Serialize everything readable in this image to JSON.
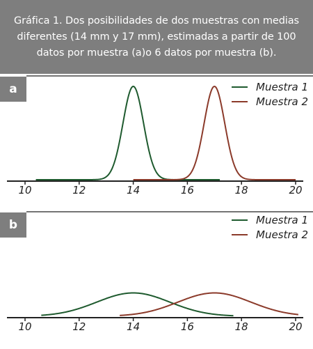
{
  "caption": "Gráfica 1. Dos posibilidades de dos muestras con medias diferentes (14 mm y 17 mm), estimadas a partir de 100 datos por muestra (a)o 6 datos por muestra (b).",
  "colors": {
    "caption_bg": "#7e7e7e",
    "series_1": "#1e5a2e",
    "series_2": "#8b3a2a",
    "axis": "#222222"
  },
  "chart_data": [
    {
      "type": "line",
      "panel_label": "a",
      "xlim": [
        10,
        20
      ],
      "x_ticks": [
        10,
        12,
        14,
        16,
        18,
        20
      ],
      "grid": false,
      "legend_position": "top-right",
      "series": [
        {
          "name": "Muestra 1",
          "mean": 14,
          "sd": 0.38,
          "x_range": [
            10.4,
            17.2
          ],
          "peak": 1.0
        },
        {
          "name": "Muestra 2",
          "mean": 17,
          "sd": 0.38,
          "x_range": [
            14,
            20
          ],
          "peak": 1.0
        }
      ]
    },
    {
      "type": "line",
      "panel_label": "b",
      "xlim": [
        10,
        20
      ],
      "x_ticks": [
        10,
        12,
        14,
        16,
        18,
        20
      ],
      "grid": false,
      "legend_position": "top-right",
      "series": [
        {
          "name": "Muestra 1",
          "mean": 14,
          "sd": 1.35,
          "x_range": [
            10.6,
            17.7
          ],
          "peak": 0.25
        },
        {
          "name": "Muestra 2",
          "mean": 17,
          "sd": 1.35,
          "x_range": [
            13.5,
            20.1
          ],
          "peak": 0.25
        }
      ]
    }
  ]
}
